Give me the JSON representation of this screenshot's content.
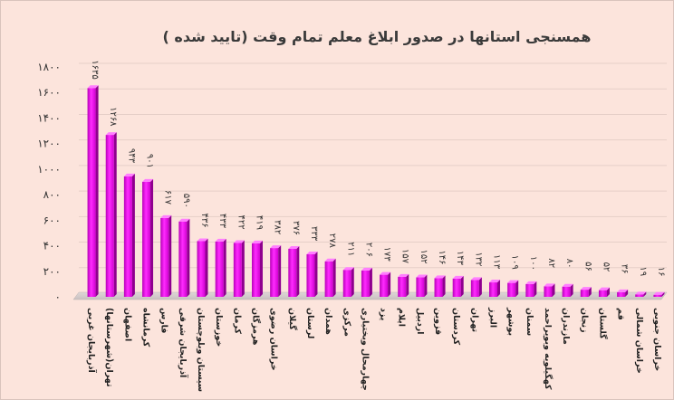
{
  "chart_data": {
    "type": "bar",
    "title": "همسنجی استانها در صدور ابلاغ معلم تمام وقت (تایید شده )",
    "xlabel": "",
    "ylabel": "",
    "ylim": [
      0,
      1800
    ],
    "yticks": [
      0,
      200,
      400,
      600,
      800,
      1000,
      1200,
      1400,
      1600,
      1800
    ],
    "ytick_labels": [
      "۰",
      "۲۰۰",
      "۴۰۰",
      "۶۰۰",
      "۸۰۰",
      "۱۰۰۰",
      "۱۲۰۰",
      "۱۴۰۰",
      "۱۶۰۰",
      "۱۸۰۰"
    ],
    "grid": true,
    "legend": "none",
    "bar_color": "#e600e6",
    "categories": [
      "آذربایجان غربی",
      "تهران(شهرستانها)",
      "اصفهان",
      "کرمانشاه",
      "فارس",
      "آذربایجان شرقی",
      "سیستان وبلوچستان",
      "خوزستان",
      "کرمان",
      "هرمزگان",
      "خراسان رضوی",
      "گیلان",
      "لرستان",
      "همدان",
      "مرکزی",
      "چهارمحال وبختیاری",
      "یزد",
      "ایلام",
      "اردبیل",
      "قزوین",
      "کردستان",
      "تهران",
      "البرز",
      "بوشهر",
      "سمنان",
      "کهگیلویه وبویراحمد",
      "مازندران",
      "زنجان",
      "گلستان",
      "قم",
      "خراسان شمالی",
      "خراسان جنوبی"
    ],
    "values": [
      1635,
      1268,
      943,
      901,
      617,
      590,
      436,
      433,
      422,
      419,
      382,
      376,
      333,
      278,
      211,
      206,
      173,
      157,
      152,
      146,
      143,
      132,
      113,
      109,
      100,
      82,
      80,
      56,
      52,
      36,
      19,
      16
    ],
    "value_labels": [
      "۱۶۳۵",
      "۱۲۶۸",
      "۹۴۳",
      "۹۰۱",
      "۶۱۷",
      "۵۹۰",
      "۴۳۶",
      "۴۳۳",
      "۴۲۲",
      "۴۱۹",
      "۳۸۲",
      "۳۷۶",
      "۳۳۳",
      "۲۷۸",
      "۲۱۱",
      "۲۰۶",
      "۱۷۳",
      "۱۵۷",
      "۱۵۲",
      "۱۴۶",
      "۱۴۳",
      "۱۳۲",
      "۱۱۳",
      "۱۰۹",
      "۱۰۰",
      "۸۲",
      "۸۰",
      "۵۶",
      "۵۲",
      "۳۶",
      "۱۹",
      "۱۶"
    ]
  }
}
